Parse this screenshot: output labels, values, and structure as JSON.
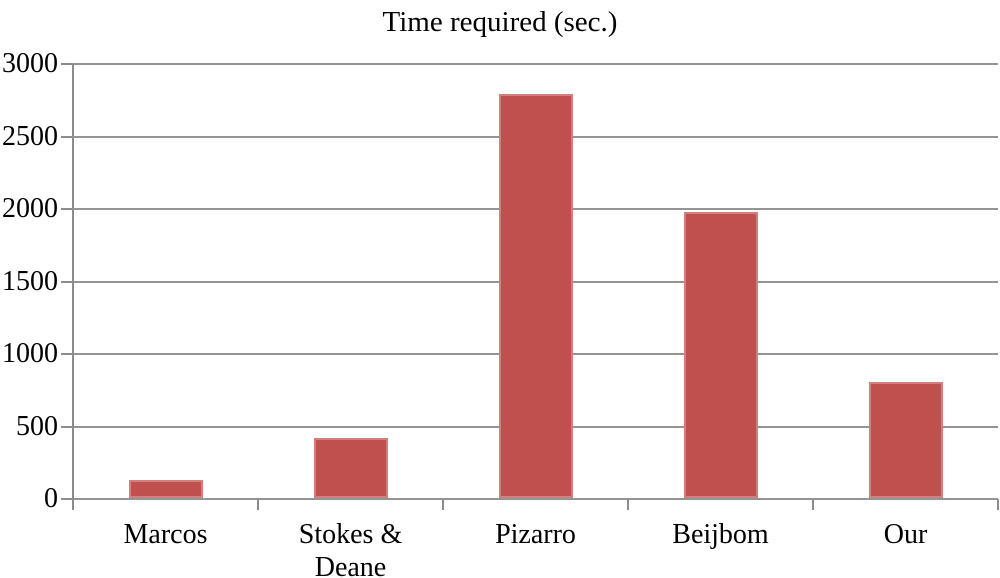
{
  "chart_data": {
    "type": "bar",
    "title": "Time required (sec.)",
    "categories": [
      "Marcos",
      "Stokes &\nDeane",
      "Pizarro",
      "Beijbom",
      "Our"
    ],
    "values": [
      125,
      415,
      2785,
      1975,
      800
    ],
    "xlabel": "",
    "ylabel": "",
    "ylim": [
      0,
      3000
    ],
    "yticks": [
      0,
      500,
      1000,
      1500,
      2000,
      2500,
      3000
    ],
    "ytick_labels": [
      "0",
      "500",
      "1000",
      "1500",
      "2000",
      "2500",
      "3000"
    ],
    "grid": true,
    "legend": false,
    "colors": {
      "bar_fill": "#c0504d",
      "bar_highlight": "#d99694",
      "gridline": "#949494",
      "axis": "#8c8c8c",
      "text": "#000000",
      "background": "#ffffff"
    }
  }
}
